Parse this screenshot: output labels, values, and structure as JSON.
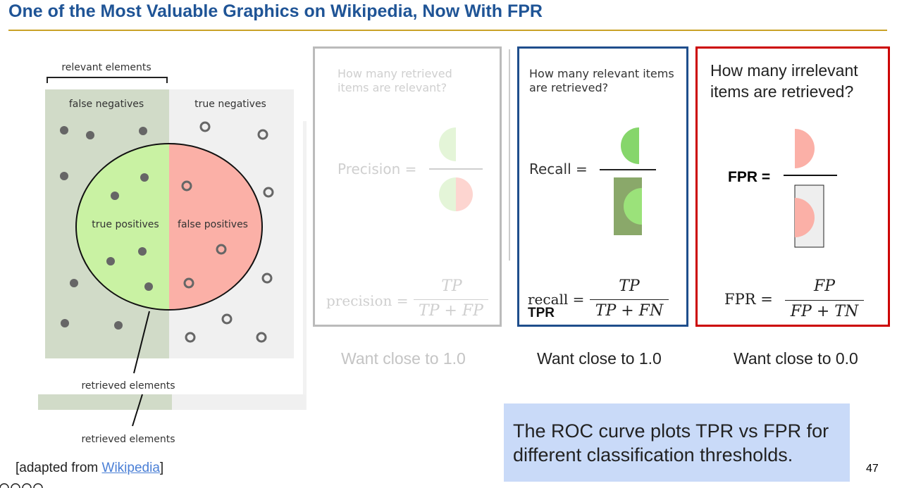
{
  "title": "One of the Most Valuable Graphics on Wikipedia, Now With FPR",
  "colors": {
    "title": "#1f5496",
    "rule": "#c9a227",
    "precision_border": "#bbbbbb",
    "recall_border": "#1f4e8c",
    "fpr_border": "#cc0000",
    "callout_bg": "#c9daf8",
    "true_positive": "#c9f2a3",
    "false_positive": "#fbb0a7",
    "false_negative_bg": "#d1dbc8",
    "true_negative_bg": "#f0f0f0"
  },
  "diagram": {
    "relevant_label": "relevant elements",
    "false_negatives": "false negatives",
    "true_negatives": "true negatives",
    "true_positives": "true positives",
    "false_positives": "false positives",
    "retrieved_label_1": "retrieved elements",
    "retrieved_label_2": "retrieved elements"
  },
  "precision_panel": {
    "question": "How many retrieved items are relevant?",
    "label": "Precision =",
    "formula_lhs": "precision =",
    "numerator": "TP",
    "denominator": "TP + FP",
    "want": "Want close to 1.0"
  },
  "recall_panel": {
    "question": "How many relevant items are retrieved?",
    "label": "Recall =",
    "formula_lhs": "recall =",
    "formula_sub": "TPR",
    "numerator": "TP",
    "denominator": "TP + FN",
    "want": "Want close to 1.0"
  },
  "fpr_panel": {
    "question": "How many irrelevant items are retrieved?",
    "label": "FPR =",
    "formula_lhs": "FPR =",
    "numerator": "FP",
    "denominator": "FP + TN",
    "want": "Want close to 0.0"
  },
  "callout": "The ROC curve plots TPR vs FPR for different classification thresholds.",
  "credit": {
    "prefix": "[adapted from ",
    "link": "Wikipedia",
    "suffix": "]"
  },
  "page_number": "47"
}
